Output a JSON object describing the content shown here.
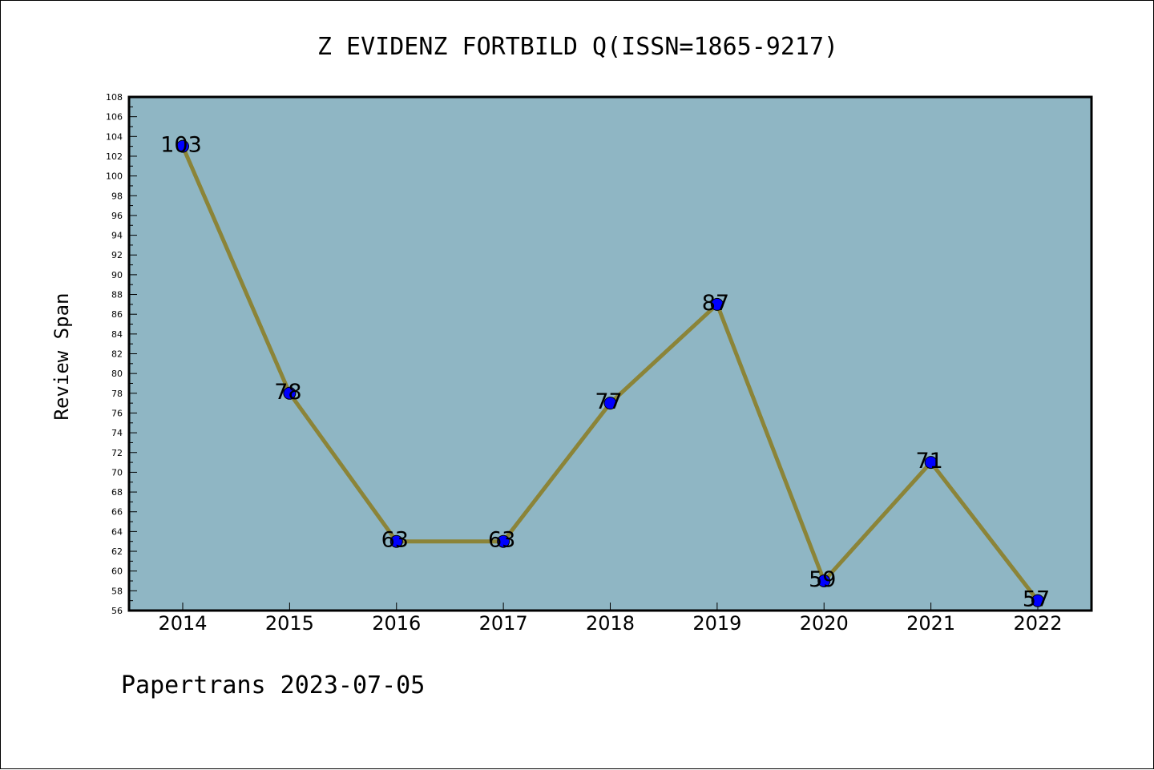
{
  "chart_data": {
    "type": "line",
    "title": "Z EVIDENZ FORTBILD Q(ISSN=1865-9217)",
    "ylabel": "Review Span",
    "xlabel": "",
    "footer": "Papertrans 2023-07-05",
    "categories": [
      "2014",
      "2015",
      "2016",
      "2017",
      "2018",
      "2019",
      "2020",
      "2021",
      "2022"
    ],
    "series": [
      {
        "values": [
          103,
          78,
          63,
          63,
          77,
          87,
          59,
          71,
          57
        ]
      }
    ],
    "data_labels": [
      "103",
      "78",
      "63",
      "63",
      "77",
      "87",
      "59",
      "71",
      "57"
    ],
    "ylim": [
      56,
      108
    ],
    "yticks": [
      "56",
      "58",
      "60",
      "62",
      "64",
      "66",
      "68",
      "70",
      "72",
      "74",
      "76",
      "78",
      "80",
      "82",
      "84",
      "86",
      "88",
      "90",
      "92",
      "94",
      "96",
      "98",
      "100",
      "102",
      "104",
      "106",
      "108"
    ],
    "grid": false,
    "legend": "none",
    "colors": {
      "plot_background": "#8fb6c4",
      "line": "#8b8438",
      "marker": "#0000ff"
    }
  }
}
